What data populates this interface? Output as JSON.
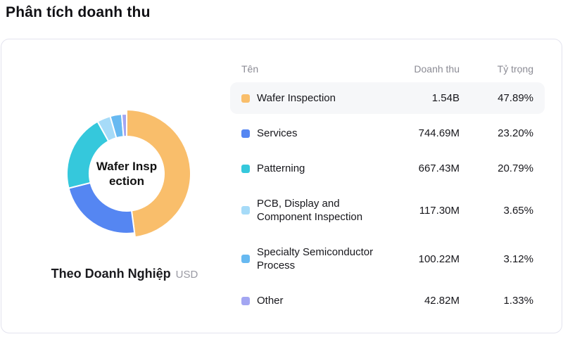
{
  "page": {
    "title": "Phân tích doanh thu"
  },
  "chart": {
    "center_label": "Wafer Inspection",
    "center_label_line1": "Wafer Insp",
    "center_label_line2": "ection",
    "caption": "Theo Doanh Nghiệp",
    "caption_unit": "USD"
  },
  "table": {
    "headers": {
      "name": "Tên",
      "revenue": "Doanh thu",
      "share": "Tỷ trọng"
    },
    "rows": [
      {
        "name": "Wafer Inspection",
        "revenue": "1.54B",
        "share": "47.89%",
        "color": "#F9BE6B",
        "highlighted": true
      },
      {
        "name": "Services",
        "revenue": "744.69M",
        "share": "23.20%",
        "color": "#5586F2",
        "highlighted": false
      },
      {
        "name": "Patterning",
        "revenue": "667.43M",
        "share": "20.79%",
        "color": "#35C8DC",
        "highlighted": false
      },
      {
        "name": "PCB, Display and Component Inspection",
        "revenue": "117.30M",
        "share": "3.65%",
        "color": "#A6DBF8",
        "highlighted": false
      },
      {
        "name": "Specialty Semiconductor Process",
        "revenue": "100.22M",
        "share": "3.12%",
        "color": "#67B9F1",
        "highlighted": false
      },
      {
        "name": "Other",
        "revenue": "42.82M",
        "share": "1.33%",
        "color": "#A3A6F2",
        "highlighted": false
      }
    ]
  },
  "chart_data": {
    "type": "pie",
    "subtype": "donut",
    "title": "Phân tích doanh thu",
    "caption": "Theo Doanh Nghiệp",
    "unit": "USD",
    "categories": [
      "Wafer Inspection",
      "Services",
      "Patterning",
      "PCB, Display and Component Inspection",
      "Specialty Semiconductor Process",
      "Other"
    ],
    "values_percent": [
      47.89,
      23.2,
      20.79,
      3.65,
      3.12,
      1.33
    ],
    "values_revenue_label": [
      "1.54B",
      "744.69M",
      "667.43M",
      "117.30M",
      "100.22M",
      "42.82M"
    ],
    "colors": [
      "#F9BE6B",
      "#5586F2",
      "#35C8DC",
      "#A6DBF8",
      "#67B9F1",
      "#A3A6F2"
    ],
    "selected_index": 0,
    "start_angle_deg": 0,
    "direction": "clockwise",
    "legend_position": "right-table"
  }
}
